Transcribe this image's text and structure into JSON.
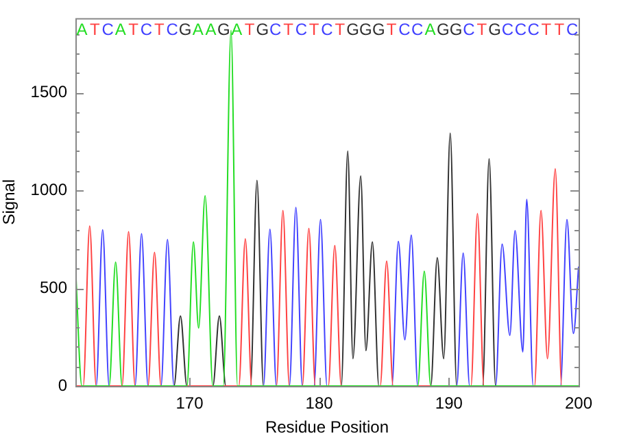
{
  "chart_data": {
    "type": "line",
    "xlabel": "Residue Position",
    "ylabel": "Signal",
    "xlim": [
      161.2,
      200
    ],
    "xticks": [
      170,
      180,
      190,
      200
    ],
    "ylim": [
      0,
      1880
    ],
    "yticks": [
      0,
      {
        "value": 100,
        "label": null
      },
      {
        "value": 200,
        "label": null
      },
      {
        "value": 300,
        "label": null
      },
      {
        "value": 400,
        "label": null
      },
      500,
      {
        "value": 600,
        "label": null
      },
      {
        "value": 700,
        "label": null
      },
      {
        "value": 800,
        "label": null
      },
      {
        "value": 900,
        "label": null
      },
      1000,
      {
        "value": 1100,
        "label": null
      },
      {
        "value": 1200,
        "label": null
      },
      {
        "value": 1300,
        "label": null
      },
      {
        "value": 1400,
        "label": null
      },
      1500,
      {
        "value": 1600,
        "label": null
      },
      {
        "value": 1700,
        "label": null
      },
      {
        "value": 1800,
        "label": null
      }
    ],
    "annotations": [
      "ATCATCTCGAAGATGCTCTCTGGGTCCAGGCTGCCCTTC"
    ],
    "legend": false,
    "marker": "none",
    "line_style": "solid",
    "series": [
      {
        "color": "#22dd22",
        "x": [
          161.2,
          161.7,
          163.8,
          164.3,
          164.8,
          169.8,
          170.3,
          170.7,
          171.2,
          171.8,
          172.6,
          173.2,
          173.7,
          187.6,
          188.1,
          188.6,
          200
        ],
        "values": [
          620,
          0,
          0,
          633,
          0,
          0,
          736,
          296,
          972,
          0,
          0,
          1817,
          0,
          0,
          587,
          0,
          0
        ]
      },
      {
        "color": "#ff4040",
        "x": [
          161.2,
          161.8,
          162.3,
          162.8,
          164.8,
          165.3,
          165.8,
          166.8,
          167.3,
          167.8,
          173.8,
          174.3,
          174.8,
          176.7,
          177.2,
          177.7,
          178.7,
          179.2,
          179.7,
          180.7,
          181.2,
          181.7,
          184.7,
          185.2,
          185.7,
          191.7,
          192.2,
          192.7,
          196.6,
          197.1,
          197.6,
          198.2,
          198.7,
          200
        ],
        "values": [
          0,
          0,
          817,
          0,
          0,
          789,
          0,
          0,
          683,
          0,
          0,
          752,
          0,
          0,
          897,
          0,
          0,
          805,
          0,
          0,
          718,
          0,
          0,
          638,
          0,
          0,
          881,
          0,
          0,
          897,
          140,
          1110,
          0,
          0
        ]
      },
      {
        "color": "#4040ff",
        "x": [
          161.2,
          162.8,
          163.3,
          163.8,
          165.8,
          166.3,
          166.8,
          167.8,
          168.3,
          168.8,
          175.7,
          176.2,
          176.7,
          177.7,
          178.2,
          178.7,
          179.6,
          180.1,
          180.6,
          185.6,
          186.1,
          186.6,
          187.1,
          187.6,
          190.6,
          191.1,
          191.6,
          193.6,
          194.1,
          194.7,
          195.1,
          195.7,
          196.0,
          196.5,
          198.6,
          199.1,
          199.6,
          200
        ],
        "values": [
          0,
          0,
          798,
          0,
          0,
          778,
          0,
          0,
          748,
          0,
          0,
          801,
          0,
          0,
          913,
          0,
          0,
          851,
          0,
          0,
          739,
          236,
          771,
          0,
          0,
          679,
          0,
          0,
          725,
          259,
          794,
          174,
          954,
          0,
          0,
          851,
          268,
          610
        ]
      },
      {
        "color": "#303030",
        "x": [
          161.2,
          168.8,
          169.3,
          169.8,
          171.8,
          172.3,
          172.8,
          174.7,
          175.2,
          175.7,
          181.7,
          182.2,
          182.6,
          183.2,
          183.6,
          184.1,
          184.6,
          188.6,
          189.1,
          189.6,
          190.1,
          190.6,
          192.6,
          193.1,
          193.6,
          200
        ],
        "values": [
          0,
          0,
          358,
          0,
          0,
          358,
          0,
          0,
          1051,
          0,
          0,
          1200,
          140,
          1074,
          181,
          736,
          0,
          0,
          656,
          140,
          1292,
          0,
          0,
          1161,
          0,
          0
        ]
      }
    ]
  }
}
